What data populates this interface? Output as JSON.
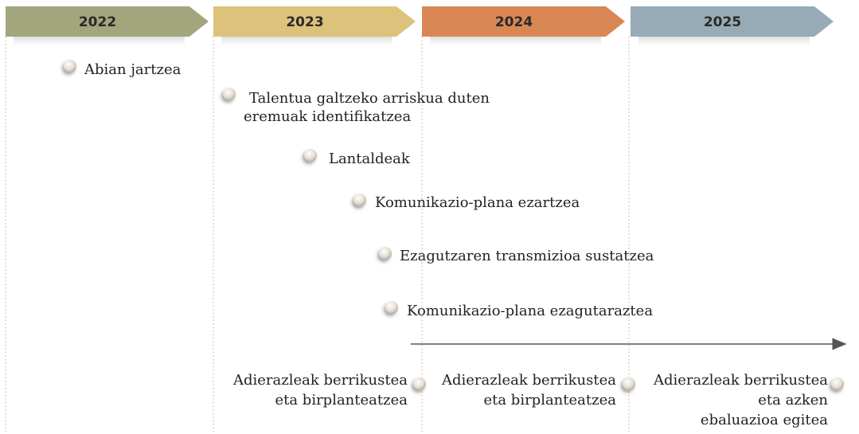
{
  "years": [
    "2022",
    "2023",
    "2024",
    "2025"
  ],
  "milestones": [
    {
      "lines": [
        "Abian jartzea"
      ]
    },
    {
      "lines": [
        "Talentua galtzeko arriskua duten",
        "eremuak identifikatzea"
      ]
    },
    {
      "lines": [
        "Lantaldeak"
      ]
    },
    {
      "lines": [
        "Komunikazio-plana ezartzea"
      ]
    },
    {
      "lines": [
        "Ezagutzaren transmizioa sustatzea"
      ]
    },
    {
      "lines": [
        "Komunikazio-plana ezagutaraztea"
      ]
    }
  ],
  "reviews": [
    {
      "lines": [
        "Adierazleak berrikustea",
        "eta birplanteatzea"
      ]
    },
    {
      "lines": [
        "Adierazleak berrikustea",
        "eta birplanteatzea"
      ]
    },
    {
      "lines": [
        "Adierazleak berrikustea",
        "eta azken",
        "ebaluazioa egitea"
      ]
    }
  ]
}
